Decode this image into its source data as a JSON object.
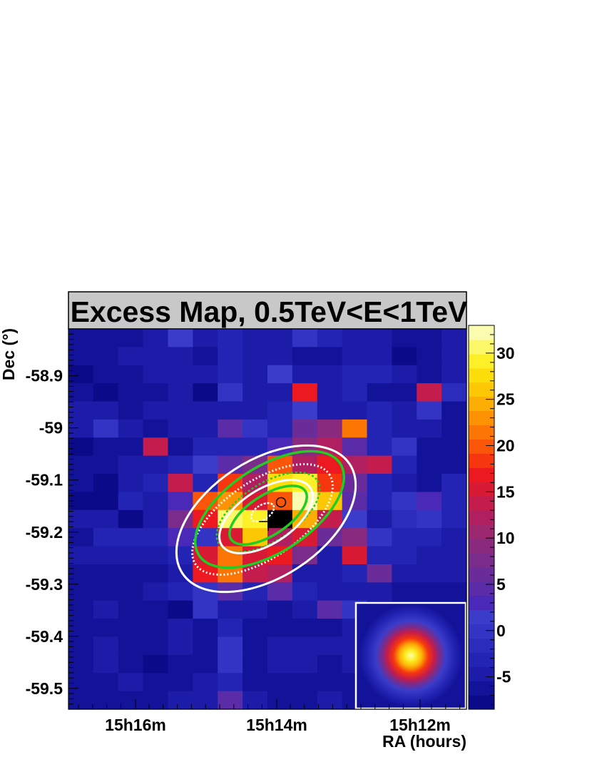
{
  "chart_data": {
    "type": "heatmap",
    "title": "Excess Map, 0.5TeV<E<1TeV",
    "xlabel": "RA (hours)",
    "ylabel": "Dec (°)",
    "x_tick_labels": [
      "15h16m",
      "15h14m",
      "15h12m"
    ],
    "y_ticks": [
      -58.9,
      -59,
      -59.1,
      -59.2,
      -59.3,
      -59.4,
      -59.5
    ],
    "y_tick_labels": [
      "-58.9",
      "-59",
      "-59.1",
      "-59.2",
      "-59.3",
      "-59.4",
      "-59.5"
    ],
    "ylim": [
      -59.54,
      -58.81
    ],
    "colorbar": {
      "min": -8.5,
      "max": 33,
      "ticks": [
        -5,
        0,
        5,
        10,
        15,
        20,
        25,
        30
      ],
      "tick_labels": [
        "-5",
        "0",
        "5",
        "10",
        "15",
        "20",
        "25",
        "30"
      ]
    },
    "palette": [
      "#0b0b8a",
      "#13139a",
      "#1c1ca8",
      "#2424b4",
      "#2c2cbc",
      "#3434c4",
      "#3c3cca",
      "#4a28b8",
      "#5a2ca8",
      "#6a2c98",
      "#7a2c8a",
      "#8a2a7e",
      "#9c2870",
      "#b02060",
      "#c41c4c",
      "#d81a34",
      "#ec1a20",
      "#f6360e",
      "#fa560a",
      "#fc7606",
      "#fc9204",
      "#fcae04",
      "#fcc806",
      "#fcde0c",
      "#fcf028",
      "#fcf86a",
      "#fcfcb0"
    ],
    "cols": 16,
    "rows": 21,
    "grid": [
      [
        1,
        1,
        1,
        2,
        6,
        2,
        3,
        2,
        2,
        5,
        3,
        2,
        2,
        1,
        1,
        2
      ],
      [
        1,
        1,
        2,
        2,
        2,
        1,
        3,
        2,
        2,
        1,
        1,
        2,
        2,
        0,
        1,
        2
      ],
      [
        0,
        1,
        1,
        2,
        2,
        2,
        3,
        2,
        6,
        2,
        2,
        3,
        3,
        2,
        1,
        2
      ],
      [
        1,
        0,
        1,
        1,
        2,
        0,
        5,
        2,
        2,
        16,
        2,
        3,
        1,
        1,
        14,
        4
      ],
      [
        2,
        2,
        1,
        2,
        2,
        2,
        2,
        2,
        3,
        6,
        2,
        2,
        3,
        2,
        5,
        1
      ],
      [
        2,
        5,
        2,
        1,
        2,
        2,
        8,
        5,
        3,
        9,
        11,
        19,
        3,
        2,
        2,
        1
      ],
      [
        0,
        1,
        1,
        14,
        1,
        3,
        3,
        3,
        7,
        11,
        13,
        8,
        3,
        5,
        1,
        1
      ],
      [
        1,
        1,
        2,
        2,
        3,
        6,
        8,
        10,
        18,
        13,
        16,
        13,
        14,
        3,
        1,
        1
      ],
      [
        1,
        0,
        2,
        3,
        14,
        3,
        17,
        13,
        23,
        24,
        17,
        9,
        3,
        2,
        1,
        3
      ],
      [
        0,
        0,
        3,
        2,
        7,
        18,
        20,
        15,
        18,
        26,
        22,
        8,
        3,
        5,
        7,
        3
      ],
      [
        2,
        2,
        0,
        2,
        10,
        16,
        25,
        24,
        27,
        21,
        14,
        6,
        2,
        4,
        5,
        3
      ],
      [
        1,
        3,
        3,
        3,
        7,
        5,
        15,
        22,
        13,
        15,
        9,
        11,
        5,
        3,
        3,
        2
      ],
      [
        2,
        2,
        2,
        2,
        3,
        15,
        19,
        15,
        16,
        10,
        2,
        15,
        3,
        3,
        2,
        2
      ],
      [
        1,
        1,
        1,
        1,
        2,
        16,
        19,
        14,
        13,
        2,
        2,
        3,
        9,
        2,
        2,
        2
      ],
      [
        1,
        1,
        1,
        2,
        3,
        5,
        8,
        3,
        8,
        3,
        2,
        2,
        2,
        1,
        1,
        1
      ],
      [
        1,
        2,
        1,
        1,
        0,
        5,
        2,
        2,
        1,
        2,
        8,
        5,
        2,
        1,
        1,
        1
      ],
      [
        1,
        1,
        1,
        1,
        2,
        1,
        3,
        1,
        1,
        1,
        1,
        2,
        2,
        1,
        1,
        1
      ],
      [
        1,
        2,
        1,
        1,
        2,
        1,
        5,
        1,
        2,
        2,
        2,
        2,
        1,
        1,
        1,
        1
      ],
      [
        1,
        2,
        1,
        0,
        1,
        1,
        5,
        1,
        2,
        2,
        1,
        2,
        1,
        1,
        1,
        1
      ],
      [
        1,
        1,
        2,
        1,
        1,
        2,
        3,
        1,
        1,
        1,
        1,
        1,
        1,
        1,
        1,
        1
      ],
      [
        1,
        1,
        1,
        1,
        2,
        2,
        8,
        2,
        1,
        1,
        2,
        1,
        1,
        1,
        1,
        1
      ]
    ]
  }
}
